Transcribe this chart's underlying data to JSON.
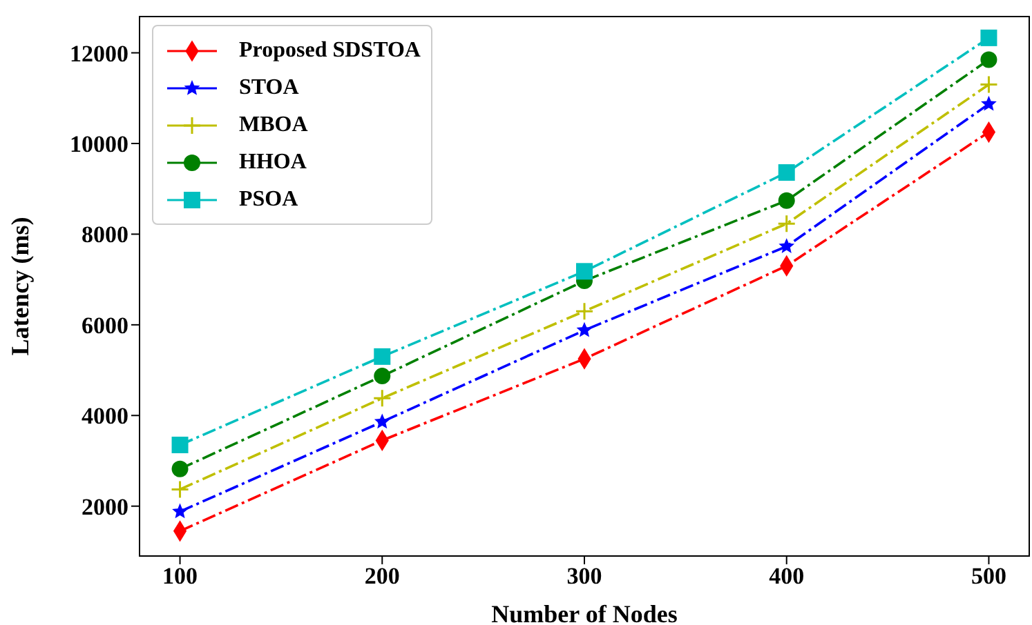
{
  "chart_data": {
    "type": "line",
    "xlabel": "Number of Nodes",
    "ylabel": "Latency (ms)",
    "x": [
      100,
      200,
      300,
      400,
      500
    ],
    "series": [
      {
        "name": "Proposed SDSTOA",
        "color": "#ff0000",
        "marker": "diamond",
        "values": [
          1450,
          3450,
          5250,
          7300,
          10250
        ]
      },
      {
        "name": "STOA",
        "color": "#0000ff",
        "marker": "star",
        "values": [
          1880,
          3860,
          5880,
          7730,
          10870
        ]
      },
      {
        "name": "MBOA",
        "color": "#bfbf00",
        "marker": "cross",
        "values": [
          2370,
          4380,
          6300,
          8230,
          11300
        ]
      },
      {
        "name": "HHOA",
        "color": "#008000",
        "marker": "circle",
        "values": [
          2820,
          4870,
          6970,
          8740,
          11850
        ]
      },
      {
        "name": "PSOA",
        "color": "#00bfbf",
        "marker": "square",
        "values": [
          3350,
          5300,
          7180,
          9360,
          12330
        ]
      }
    ],
    "xlim": [
      80,
      520
    ],
    "xticks": [
      100,
      200,
      300,
      400,
      500
    ],
    "ylim": [
      900,
      12800
    ],
    "yticks": [
      2000,
      4000,
      6000,
      8000,
      10000,
      12000
    ],
    "grid": false,
    "legend": "top left",
    "line_style": "dashed"
  }
}
